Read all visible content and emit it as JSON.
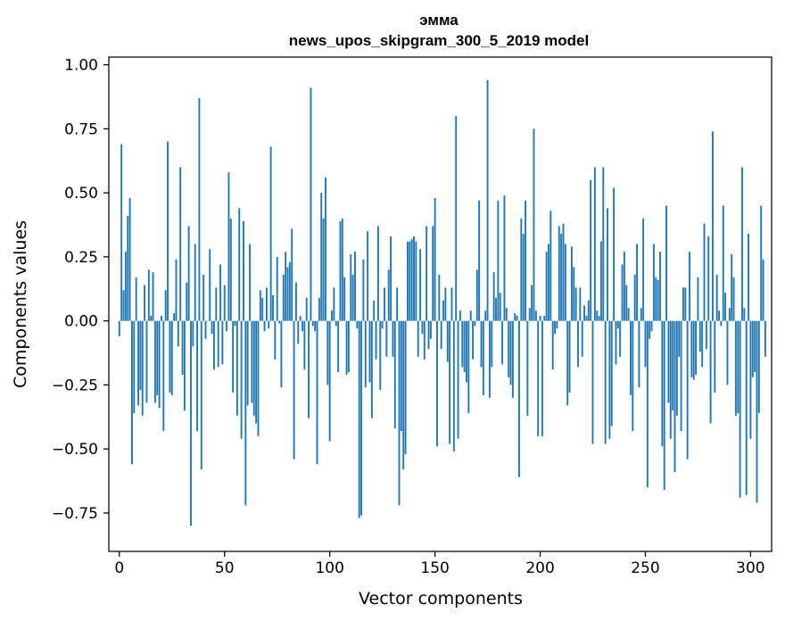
{
  "chart_data": {
    "type": "bar",
    "title": "эмма",
    "subtitle": "news_upos_skipgram_300_5_2019 model",
    "xlabel": "Vector components",
    "ylabel": "Components values",
    "xlim": [
      -5,
      310
    ],
    "ylim": [
      -0.9,
      1.03
    ],
    "xticks": [
      0,
      50,
      100,
      150,
      200,
      250,
      300
    ],
    "xtick_labels": [
      "0",
      "50",
      "100",
      "150",
      "200",
      "250",
      "300"
    ],
    "yticks": [
      -0.75,
      -0.5,
      -0.25,
      0.0,
      0.25,
      0.5,
      0.75,
      1.0
    ],
    "ytick_labels": [
      "−0.75",
      "−0.50",
      "−0.25",
      "0.00",
      "0.25",
      "0.50",
      "0.75",
      "1.00"
    ],
    "grid": false,
    "bar_color": "#1f77b4",
    "values": [
      -0.06,
      0.69,
      0.12,
      0.27,
      0.41,
      0.48,
      -0.56,
      -0.36,
      0.17,
      -0.33,
      -0.27,
      -0.37,
      0.14,
      -0.32,
      0.2,
      0.02,
      0.19,
      -0.32,
      -0.29,
      -0.34,
      0.02,
      -0.43,
      0.12,
      0.7,
      -0.28,
      -0.29,
      0.03,
      0.24,
      -0.1,
      0.6,
      -0.21,
      -0.35,
      0.15,
      0.37,
      -0.8,
      -0.1,
      0.3,
      -0.43,
      0.87,
      -0.58,
      0.18,
      -0.07,
      0.0,
      0.28,
      -0.05,
      -0.19,
      0.13,
      -0.18,
      0.22,
      -0.17,
      0.14,
      -0.04,
      0.58,
      0.4,
      -0.28,
      -0.02,
      -0.37,
      0.44,
      -0.46,
      0.39,
      -0.72,
      -0.33,
      0.3,
      -0.32,
      -0.37,
      -0.4,
      -0.45,
      0.12,
      0.09,
      -0.04,
      0.13,
      -0.03,
      0.68,
      0.1,
      -0.15,
      0.25,
      -0.01,
      -0.26,
      0.18,
      0.27,
      0.21,
      0.23,
      0.36,
      -0.54,
      0.15,
      -0.09,
      0.02,
      -0.04,
      -0.19,
      0.09,
      -0.38,
      0.91,
      -0.02,
      -0.04,
      -0.56,
      0.09,
      0.5,
      0.4,
      0.56,
      -0.25,
      -0.47,
      0.04,
      0.13,
      -0.02,
      -0.2,
      0.39,
      0.4,
      0.17,
      -0.21,
      -0.2,
      0.26,
      0.18,
      0.27,
      -0.03,
      -0.77,
      -0.76,
      0.24,
      -0.26,
      0.35,
      -0.24,
      -0.38,
      0.08,
      -0.15,
      0.37,
      -0.27,
      -0.03,
      0.13,
      -0.14,
      0.2,
      0.33,
      -0.14,
      -0.42,
      0.13,
      -0.72,
      -0.43,
      -0.58,
      -0.52,
      0.31,
      0.31,
      0.32,
      0.33,
      0.31,
      -0.14,
      0.28,
      -0.05,
      -0.15,
      0.37,
      -0.11,
      -0.07,
      0.37,
      0.48,
      -0.49,
      0.18,
      -0.11,
      0.08,
      0.13,
      -0.16,
      -0.48,
      0.13,
      -0.51,
      0.8,
      -0.46,
      0.04,
      -0.18,
      -0.2,
      -0.24,
      -0.36,
      0.04,
      -0.15,
      -0.02,
      0.2,
      0.47,
      -0.18,
      -0.29,
      0.04,
      0.94,
      -0.3,
      -0.18,
      0.19,
      0.09,
      0.47,
      0.11,
      -0.17,
      0.49,
      0.05,
      -0.22,
      -0.25,
      -0.3,
      0.03,
      0.02,
      -0.61,
      0.4,
      0.34,
      0.47,
      -0.37,
      0.05,
      0.14,
      0.75,
      0.04,
      -0.45,
      0.02,
      -0.45,
      0.02,
      0.27,
      0.3,
      0.43,
      -0.19,
      -0.05,
      -0.03,
      0.37,
      0.34,
      0.38,
      0.3,
      -0.33,
      -0.28,
      0.29,
      0.21,
      0.13,
      -0.18,
      0.13,
      -0.14,
      0.06,
      0.02,
      0.08,
      0.55,
      -0.48,
      0.6,
      0.04,
      0.02,
      0.31,
      0.6,
      -0.48,
      0.44,
      -0.46,
      -0.41,
      0.52,
      -0.17,
      -0.03,
      -0.14,
      0.22,
      0.27,
      0.14,
      0.05,
      -0.29,
      -0.43,
      0.18,
      0.3,
      -0.26,
      0.05,
      0.4,
      -0.18,
      -0.65,
      -0.07,
      -0.04,
      0.3,
      0.17,
      0.16,
      0.27,
      -0.49,
      -0.66,
      0.45,
      -0.32,
      -0.46,
      -0.35,
      -0.59,
      -0.37,
      -0.14,
      -0.43,
      0.13,
      0.13,
      -0.54,
      0.27,
      -0.22,
      -0.23,
      -0.21,
      0.17,
      -0.12,
      -0.18,
      0.38,
      -0.11,
      0.33,
      -0.4,
      0.74,
      -0.28,
      0.18,
      0.04,
      -0.02,
      0.45,
      0.11,
      -0.25,
      0.05,
      0.26,
      0.17,
      -0.37,
      -0.36,
      -0.69,
      0.6,
      0.05,
      -0.68,
      0.34,
      -0.46,
      -0.22,
      -0.2,
      -0.71,
      -0.36,
      0.45,
      0.24,
      -0.14
    ]
  }
}
